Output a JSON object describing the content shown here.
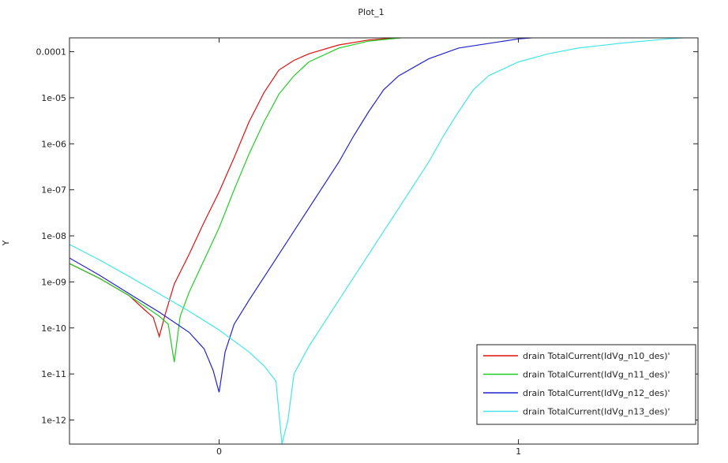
{
  "chart_data": {
    "type": "line",
    "title": "Plot_1",
    "xlabel": "",
    "ylabel": "Y",
    "y_scale": "log",
    "xlim": [
      -0.5,
      1.6
    ],
    "ylim": [
      3e-13,
      0.0002
    ],
    "x_ticks": [
      {
        "value": 0,
        "label": "0"
      },
      {
        "value": 1,
        "label": "1"
      }
    ],
    "y_ticks": [
      {
        "value": 0.0001,
        "label": "0.0001"
      },
      {
        "value": 1e-05,
        "label": "1e-05"
      },
      {
        "value": 1e-06,
        "label": "1e-06"
      },
      {
        "value": 1e-07,
        "label": "1e-07"
      },
      {
        "value": 1e-08,
        "label": "1e-08"
      },
      {
        "value": 1e-09,
        "label": "1e-09"
      },
      {
        "value": 1e-10,
        "label": "1e-10"
      },
      {
        "value": 1e-11,
        "label": "1e-11"
      },
      {
        "value": 1e-12,
        "label": "1e-12"
      }
    ],
    "grid": false,
    "legend_position": "bottom-right",
    "series": [
      {
        "name": "drain TotalCurrent(IdVg_n10_des)'",
        "color": "#e01010",
        "points": [
          [
            -0.5,
            2.5e-09
          ],
          [
            -0.4,
            1.2e-09
          ],
          [
            -0.3,
            5e-10
          ],
          [
            -0.25,
            2.5e-10
          ],
          [
            -0.22,
            1.7e-10
          ],
          [
            -0.2,
            6.5e-11
          ],
          [
            -0.18,
            2e-10
          ],
          [
            -0.15,
            9e-10
          ],
          [
            -0.1,
            4e-09
          ],
          [
            -0.05,
            2e-08
          ],
          [
            0,
            9e-08
          ],
          [
            0.05,
            5e-07
          ],
          [
            0.1,
            3e-06
          ],
          [
            0.15,
            1.3e-05
          ],
          [
            0.2,
            4e-05
          ],
          [
            0.25,
            6.5e-05
          ],
          [
            0.3,
            9e-05
          ],
          [
            0.4,
            0.00014
          ],
          [
            0.5,
            0.00018
          ],
          [
            0.7,
            0.00023
          ],
          [
            1,
            0.00027
          ],
          [
            1.3,
            0.000285
          ],
          [
            1.5,
            0.00029
          ]
        ]
      },
      {
        "name": "drain TotalCurrent(IdVg_n11_des)'",
        "color": "#22cc22",
        "points": [
          [
            -0.5,
            2.5e-09
          ],
          [
            -0.4,
            1.2e-09
          ],
          [
            -0.3,
            5e-10
          ],
          [
            -0.2,
            1.8e-10
          ],
          [
            -0.17,
            1.2e-10
          ],
          [
            -0.15,
            1.8e-11
          ],
          [
            -0.13,
            1.8e-10
          ],
          [
            -0.1,
            6e-10
          ],
          [
            -0.05,
            3e-09
          ],
          [
            0,
            1.5e-08
          ],
          [
            0.05,
            1e-07
          ],
          [
            0.1,
            6e-07
          ],
          [
            0.15,
            3e-06
          ],
          [
            0.2,
            1.2e-05
          ],
          [
            0.25,
            3e-05
          ],
          [
            0.3,
            6e-05
          ],
          [
            0.4,
            0.00012
          ],
          [
            0.5,
            0.00017
          ],
          [
            0.7,
            0.00023
          ],
          [
            1,
            0.00027
          ],
          [
            1.3,
            0.000285
          ],
          [
            1.5,
            0.00029
          ]
        ]
      },
      {
        "name": "drain TotalCurrent(IdVg_n12_des)'",
        "color": "#2222cc",
        "points": [
          [
            -0.5,
            3.3e-09
          ],
          [
            -0.4,
            1.4e-09
          ],
          [
            -0.3,
            5.5e-10
          ],
          [
            -0.2,
            2.2e-10
          ],
          [
            -0.1,
            8e-11
          ],
          [
            -0.05,
            3.5e-11
          ],
          [
            -0.02,
            1.2e-11
          ],
          [
            0,
            4e-12
          ],
          [
            0.02,
            3e-11
          ],
          [
            0.05,
            1.2e-10
          ],
          [
            0.1,
            4e-10
          ],
          [
            0.2,
            4e-09
          ],
          [
            0.3,
            4e-08
          ],
          [
            0.4,
            4e-07
          ],
          [
            0.45,
            1.5e-06
          ],
          [
            0.5,
            5e-06
          ],
          [
            0.55,
            1.5e-05
          ],
          [
            0.6,
            3e-05
          ],
          [
            0.7,
            7e-05
          ],
          [
            0.8,
            0.00012
          ],
          [
            1,
            0.00019
          ],
          [
            1.2,
            0.00024
          ],
          [
            1.4,
            0.00027
          ],
          [
            1.5,
            0.00028
          ]
        ]
      },
      {
        "name": "drain TotalCurrent(IdVg_n13_des)'",
        "color": "#44e6e6",
        "points": [
          [
            -0.5,
            6.5e-09
          ],
          [
            -0.4,
            3e-09
          ],
          [
            -0.3,
            1.3e-09
          ],
          [
            -0.2,
            5.5e-10
          ],
          [
            -0.1,
            2.3e-10
          ],
          [
            0,
            9e-11
          ],
          [
            0.1,
            3e-11
          ],
          [
            0.15,
            1.5e-11
          ],
          [
            0.19,
            7e-12
          ],
          [
            0.21,
            3e-13
          ],
          [
            0.23,
            1e-12
          ],
          [
            0.25,
            1e-11
          ],
          [
            0.3,
            4e-11
          ],
          [
            0.4,
            4e-10
          ],
          [
            0.5,
            4e-09
          ],
          [
            0.6,
            4e-08
          ],
          [
            0.7,
            4e-07
          ],
          [
            0.75,
            1.5e-06
          ],
          [
            0.8,
            5e-06
          ],
          [
            0.85,
            1.5e-05
          ],
          [
            0.9,
            3e-05
          ],
          [
            1,
            6e-05
          ],
          [
            1.1,
            9e-05
          ],
          [
            1.2,
            0.00012
          ],
          [
            1.35,
            0.000155
          ],
          [
            1.5,
            0.00019
          ],
          [
            1.55,
            0.0002
          ]
        ]
      }
    ]
  }
}
